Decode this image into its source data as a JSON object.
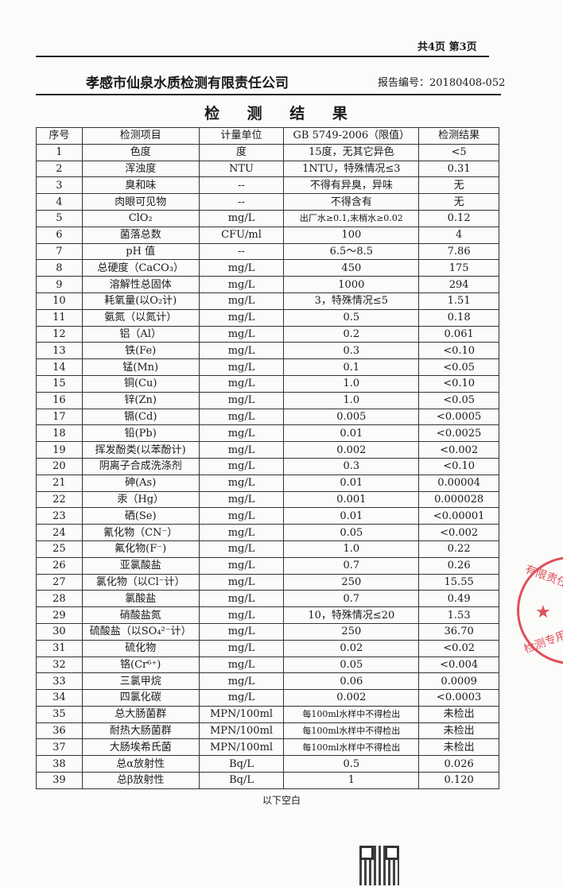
{
  "header": {
    "page_info": "共4页 第3页",
    "company": "孝感市仙泉水质检测有限责任公司",
    "report_number": "报告编号：20180408-052"
  },
  "title": "检 测 结 果",
  "table": {
    "columns": [
      "序号",
      "检测项目",
      "计量单位",
      "GB 5749-2006（限值）",
      "检测结果"
    ],
    "rows": [
      [
        "1",
        "色度",
        "度",
        "15度，无其它异色",
        "<5"
      ],
      [
        "2",
        "浑浊度",
        "NTU",
        "1NTU，特殊情况≤3",
        "0.31"
      ],
      [
        "3",
        "臭和味",
        "--",
        "不得有异臭，异味",
        "无"
      ],
      [
        "4",
        "肉眼可见物",
        "--",
        "不得含有",
        "无"
      ],
      [
        "5",
        "ClO₂",
        "mg/L",
        "出厂水≥0.1,末梢水≥0.02",
        "0.12"
      ],
      [
        "6",
        "菌落总数",
        "CFU/ml",
        "100",
        "4"
      ],
      [
        "7",
        "pH 值",
        "--",
        "6.5～8.5",
        "7.86"
      ],
      [
        "8",
        "总硬度（CaCO₃）",
        "mg/L",
        "450",
        "175"
      ],
      [
        "9",
        "溶解性总固体",
        "mg/L",
        "1000",
        "294"
      ],
      [
        "10",
        "耗氧量(以O₂计)",
        "mg/L",
        "3，特殊情况≤5",
        "1.51"
      ],
      [
        "11",
        "氨氮（以氮计）",
        "mg/L",
        "0.5",
        "0.18"
      ],
      [
        "12",
        "铝（Al）",
        "mg/L",
        "0.2",
        "0.061"
      ],
      [
        "13",
        "铁(Fe)",
        "mg/L",
        "0.3",
        "<0.10"
      ],
      [
        "14",
        "锰(Mn)",
        "mg/L",
        "0.1",
        "<0.05"
      ],
      [
        "15",
        "铜(Cu)",
        "mg/L",
        "1.0",
        "<0.10"
      ],
      [
        "16",
        "锌(Zn)",
        "mg/L",
        "1.0",
        "<0.05"
      ],
      [
        "17",
        "镉(Cd)",
        "mg/L",
        "0.005",
        "<0.0005"
      ],
      [
        "18",
        "铅(Pb)",
        "mg/L",
        "0.01",
        "<0.0025"
      ],
      [
        "19",
        "挥发酚类(以苯酚计)",
        "mg/L",
        "0.002",
        "<0.002"
      ],
      [
        "20",
        "阴离子合成洗涤剂",
        "mg/L",
        "0.3",
        "<0.10"
      ],
      [
        "21",
        "砷(As)",
        "mg/L",
        "0.01",
        "0.00004"
      ],
      [
        "22",
        "汞（Hg）",
        "mg/L",
        "0.001",
        "0.000028"
      ],
      [
        "23",
        "硒(Se)",
        "mg/L",
        "0.01",
        "<0.00001"
      ],
      [
        "24",
        "氰化物（CN⁻）",
        "mg/L",
        "0.05",
        "<0.002"
      ],
      [
        "25",
        "氟化物(F⁻)",
        "mg/L",
        "1.0",
        "0.22"
      ],
      [
        "26",
        "亚氯酸盐",
        "mg/L",
        "0.7",
        "0.26"
      ],
      [
        "27",
        "氯化物（以Cl⁻计）",
        "mg/L",
        "250",
        "15.55"
      ],
      [
        "28",
        "氯酸盐",
        "mg/L",
        "0.7",
        "0.49"
      ],
      [
        "29",
        "硝酸盐氮",
        "mg/L",
        "10，特殊情况≤20",
        "1.53"
      ],
      [
        "30",
        "硫酸盐（以SO₄²⁻计）",
        "mg/L",
        "250",
        "36.70"
      ],
      [
        "31",
        "硫化物",
        "mg/L",
        "0.02",
        "<0.02"
      ],
      [
        "32",
        "铬(Cr⁶⁺)",
        "mg/L",
        "0.05",
        "<0.004"
      ],
      [
        "33",
        "三氯甲烷",
        "mg/L",
        "0.06",
        "0.0009"
      ],
      [
        "34",
        "四氯化碳",
        "mg/L",
        "0.002",
        "<0.0003"
      ],
      [
        "35",
        "总大肠菌群",
        "MPN/100ml",
        "每100ml水样中不得检出",
        "未检出"
      ],
      [
        "36",
        "耐热大肠菌群",
        "MPN/100ml",
        "每100ml水样中不得检出",
        "未检出"
      ],
      [
        "37",
        "大肠埃希氏菌",
        "MPN/100ml",
        "每100ml水样中不得检出",
        "未检出"
      ],
      [
        "38",
        "总α放射性",
        "Bq/L",
        "0.5",
        "0.026"
      ],
      [
        "39",
        "总β放射性",
        "Bq/L",
        "1",
        "0.120"
      ]
    ]
  },
  "footer": {
    "blank_note": "以下空白"
  },
  "stamp": {
    "text_fragments": [
      "有限责任公司",
      "检测专用章"
    ],
    "color": "#e0505a"
  }
}
